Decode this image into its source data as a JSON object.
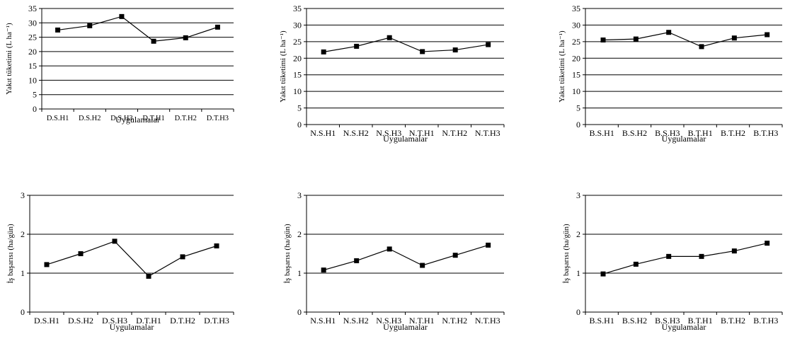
{
  "chart_data": [
    {
      "type": "line",
      "categories": [
        "D.S.H1",
        "D.S.H2",
        "D.S.H3",
        "D.T.H1",
        "D.T.H2",
        "D.T.H3"
      ],
      "series": [
        {
          "values": [
            27.5,
            29.0,
            32.2,
            23.6,
            24.8,
            28.5
          ]
        }
      ],
      "xlabel": "Uygulamalar",
      "ylabel": "Yakıt tüketimi (L ha⁻¹)",
      "ylim": [
        0,
        35
      ],
      "yticks": [
        "0",
        "5",
        "10",
        "15",
        "20",
        "25",
        "30",
        "35"
      ],
      "grid": true,
      "legend": "none",
      "line_color": "#000000",
      "marker": "square"
    },
    {
      "type": "line",
      "categories": [
        "N.S.H1",
        "N.S.H2",
        "N.S.H3",
        "N.T.H1",
        "N.T.H2",
        "N.T.H3"
      ],
      "series": [
        {
          "values": [
            21.9,
            23.6,
            26.2,
            22.0,
            22.5,
            24.1
          ]
        }
      ],
      "xlabel": "Uygulamalar",
      "ylabel": "Yakıt tüketimi (L ha⁻¹)",
      "ylim": [
        0,
        35
      ],
      "yticks": [
        "0",
        "5",
        "10",
        "15",
        "20",
        "25",
        "30",
        "35"
      ],
      "grid": true,
      "legend": "none",
      "line_color": "#000000",
      "marker": "square"
    },
    {
      "type": "line",
      "categories": [
        "B.S.H1",
        "B.S.H2",
        "B.S.H3",
        "B.T.H1",
        "B.T.H2",
        "B.T.H3"
      ],
      "series": [
        {
          "values": [
            25.5,
            25.8,
            27.8,
            23.5,
            26.1,
            27.1
          ]
        }
      ],
      "xlabel": "Uygulamalar",
      "ylabel": "Yakıt tüketimi (L ha⁻¹)",
      "ylim": [
        0,
        35
      ],
      "yticks": [
        "0",
        "5",
        "10",
        "15",
        "20",
        "25",
        "30",
        "35"
      ],
      "grid": true,
      "legend": "none",
      "line_color": "#000000",
      "marker": "square"
    },
    {
      "type": "line",
      "categories": [
        "D.S.H1",
        "D.S.H2",
        "D.S.H3",
        "D.T.H1",
        "D.T.H2",
        "D.T.H3"
      ],
      "series": [
        {
          "values": [
            1.22,
            1.5,
            1.82,
            0.92,
            1.42,
            1.7
          ]
        }
      ],
      "xlabel": "Uygulamalar",
      "ylabel": "İş başarısı (ha/gün)",
      "ylim": [
        0,
        3
      ],
      "yticks": [
        "0",
        "1",
        "2",
        "3"
      ],
      "grid": true,
      "legend": "none",
      "line_color": "#000000",
      "marker": "square"
    },
    {
      "type": "line",
      "categories": [
        "N.S.H1",
        "N.S.H2",
        "N.S.H3",
        "N.T.H1",
        "N.T.H2",
        "N.T.H3"
      ],
      "series": [
        {
          "values": [
            1.08,
            1.32,
            1.62,
            1.2,
            1.46,
            1.72
          ]
        }
      ],
      "xlabel": "Uygulamalar",
      "ylabel": "İş başarısı (ha/gün)",
      "ylim": [
        0,
        3
      ],
      "yticks": [
        "0",
        "1",
        "2",
        "3"
      ],
      "grid": true,
      "legend": "none",
      "line_color": "#000000",
      "marker": "square"
    },
    {
      "type": "line",
      "categories": [
        "B.S.H1",
        "B.S.H2",
        "B.S.H3",
        "B.T.H1",
        "B.T.H2",
        "B.T.H3"
      ],
      "series": [
        {
          "values": [
            0.98,
            1.23,
            1.43,
            1.43,
            1.57,
            1.77
          ]
        }
      ],
      "xlabel": "Uygulamalar",
      "ylabel": "İş başarısı (ha/gün)",
      "ylim": [
        0,
        3
      ],
      "yticks": [
        "0",
        "1",
        "2",
        "3"
      ],
      "grid": true,
      "legend": "none",
      "line_color": "#000000",
      "marker": "square"
    }
  ]
}
